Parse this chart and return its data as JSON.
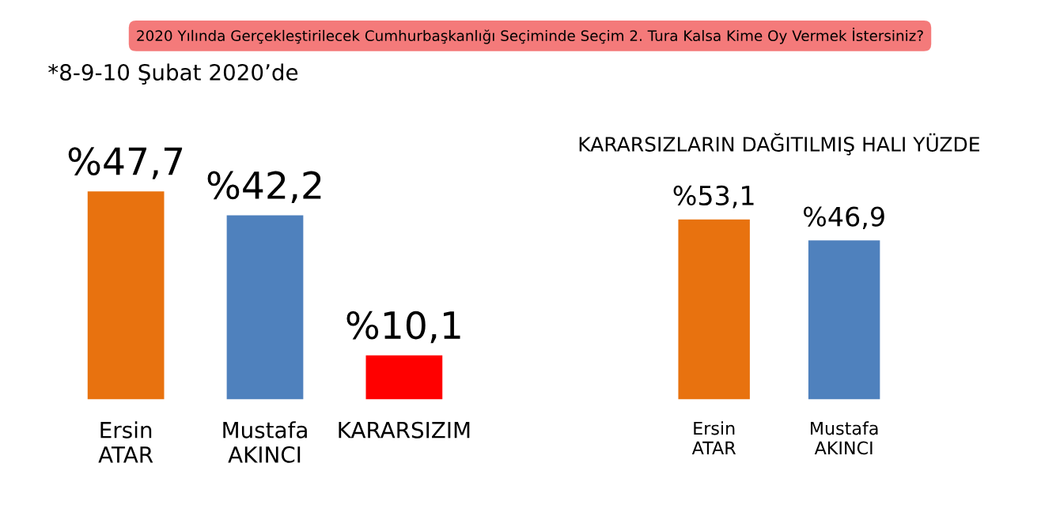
{
  "chart_data": [
    {
      "type": "bar",
      "title": "2020 Yılında Gerçekleştirilecek Cumhurbaşkanlığı Seçiminde Seçim 2. Tura Kalsa Kime Oy Vermek İstersiniz?",
      "subtitle": "*8-9-10 Şubat 2020’de",
      "categories": [
        "Ersin\nATAR",
        "Mustafa\nAKINCI",
        "KARARSIZIM"
      ],
      "values": [
        47.7,
        42.2,
        10.1
      ],
      "value_labels": [
        "%47,7",
        "%42,2",
        "%10,1"
      ],
      "colors": [
        "#e8720f",
        "#4f81bd",
        "#ff0000"
      ]
    },
    {
      "type": "bar",
      "title": "KARARSIZLARIN DAĞITILMIŞ HALI YÜZDE",
      "categories": [
        "Ersin\nATAR",
        "Mustafa\nAKINCI"
      ],
      "values": [
        53.1,
        46.9
      ],
      "value_labels": [
        "%53,1",
        "%46,9"
      ],
      "colors": [
        "#e8720f",
        "#4f81bd"
      ]
    }
  ]
}
